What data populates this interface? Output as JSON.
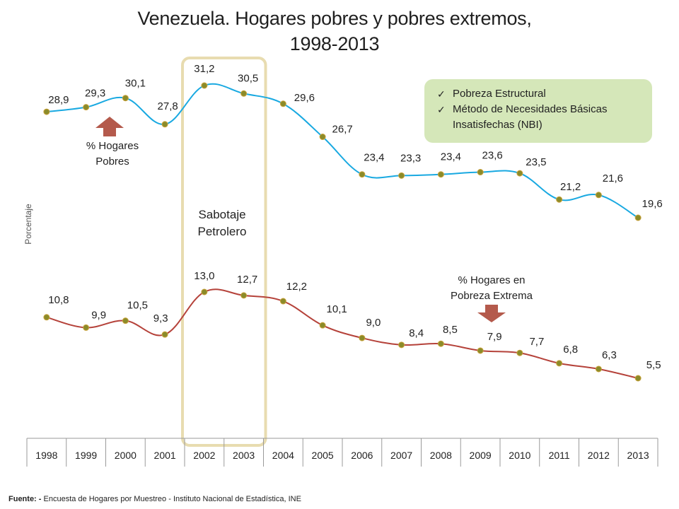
{
  "chart_data": {
    "type": "line",
    "title_line1": "Venezuela. Hogares pobres y pobres extremos,",
    "title_line2": "1998-2013",
    "ylabel": "Porcentaje",
    "categories": [
      "1998",
      "1999",
      "2000",
      "2001",
      "2002",
      "2003",
      "2004",
      "2005",
      "2006",
      "2007",
      "2008",
      "2009",
      "2010",
      "2011",
      "2012",
      "2013"
    ],
    "series": [
      {
        "key": "pobres",
        "color": "#19a9e1",
        "values": [
          28.9,
          29.3,
          30.1,
          27.8,
          31.2,
          30.5,
          29.6,
          26.7,
          23.4,
          23.3,
          23.4,
          23.6,
          23.5,
          21.2,
          21.6,
          19.6
        ],
        "labels": [
          "28,9",
          "29,3",
          "30,1",
          "27,8",
          "31,2",
          "30,5",
          "29,6",
          "26,7",
          "23,4",
          "23,3",
          "23,4",
          "23,6",
          "23,5",
          "21,2",
          "21,6",
          "19,6"
        ]
      },
      {
        "key": "extrema",
        "color": "#b5423a",
        "values": [
          10.8,
          9.9,
          10.5,
          9.3,
          13.0,
          12.7,
          12.2,
          10.1,
          9.0,
          8.4,
          8.5,
          7.9,
          7.7,
          6.8,
          6.3,
          5.5
        ],
        "labels": [
          "10,8",
          "9,9",
          "10,5",
          "9,3",
          "13,0",
          "12,7",
          "12,2",
          "10,1",
          "9,0",
          "8,4",
          "8,5",
          "7,9",
          "7,7",
          "6,8",
          "6,3",
          "5,5"
        ]
      }
    ],
    "marker_color": "#8b8b2a",
    "highlight": {
      "from": "2002",
      "to": "2003",
      "label_line1": "Sabotaje",
      "label_line2": "Petrolero"
    },
    "annotations": {
      "pobres_line1": "% Hogares",
      "pobres_line2": "Pobres",
      "extrema_line1": "% Hogares en",
      "extrema_line2": "Pobreza Extrema"
    },
    "legend": {
      "placement": "top-right",
      "items": [
        "Pobreza Estructural",
        "Método de Necesidades Básicas Insatisfechas (NBI)"
      ]
    },
    "grid": false
  },
  "colors": {
    "arrow": "#b45a4c",
    "highlight_border": "#e8dcb0",
    "legend_bg": "#d5e7b9"
  },
  "source": {
    "prefix": "Fuente: -",
    "text": " Encuesta de Hogares por Muestreo  - Instituto Nacional de Estadística, INE"
  }
}
